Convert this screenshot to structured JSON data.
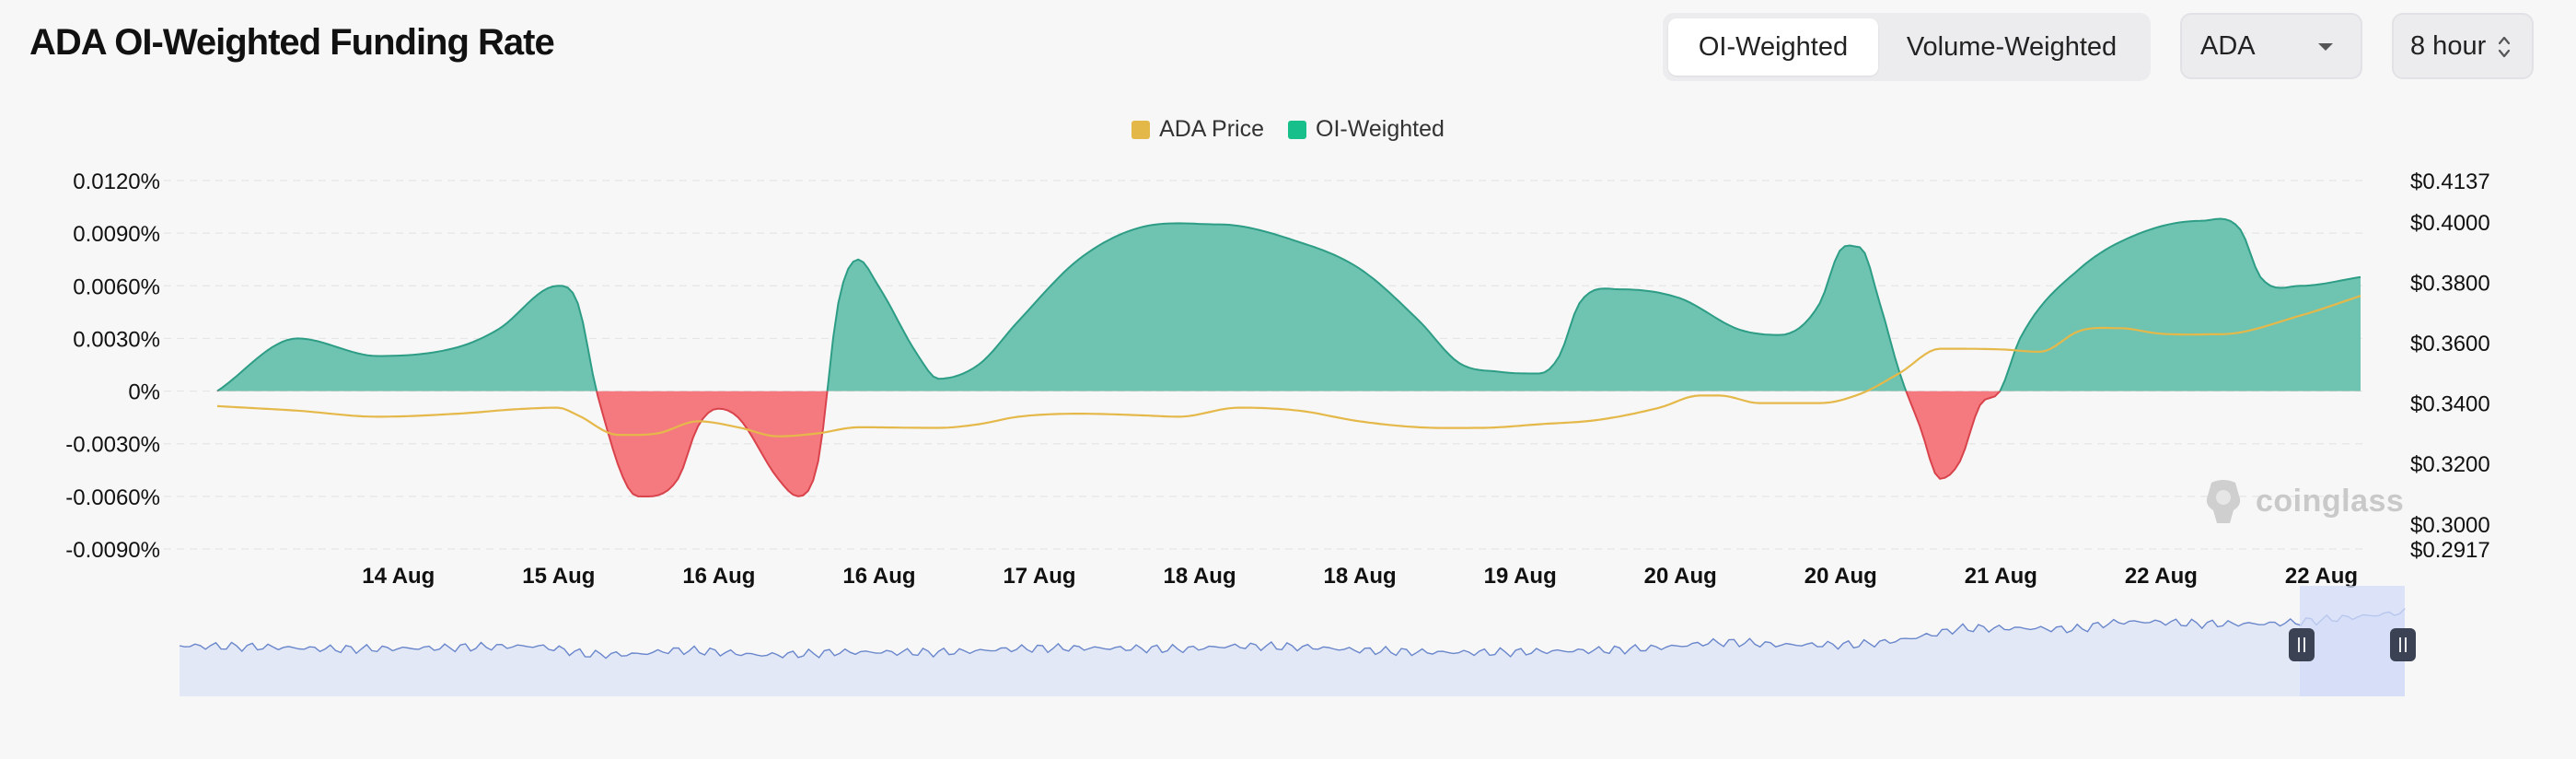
{
  "header": {
    "title": "ADA OI-Weighted Funding Rate",
    "tabs": [
      {
        "label": "OI-Weighted",
        "active": true
      },
      {
        "label": "Volume-Weighted",
        "active": false
      }
    ],
    "asset_select": {
      "value": "ADA"
    },
    "interval_select": {
      "value": "8 hour"
    }
  },
  "watermark": "coinglass",
  "colors": {
    "positive": "#6fc3b1",
    "positive_stroke": "#2e9d86",
    "negative": "#f57a80",
    "negative_stroke": "#d9434b",
    "price": "#e5b84a",
    "price_legend": "#e3b748",
    "oi_legend": "#17c08b",
    "grid": "#e6e6e6",
    "navigator_fill": "#e3e8f6",
    "navigator_line": "#6a87cc",
    "navigator_window": "#d3dcf8",
    "handle": "#3a4254"
  },
  "chart_data": {
    "type": "area",
    "title": "ADA OI-Weighted Funding Rate",
    "legend": [
      {
        "name": "ADA Price",
        "color": "#e3b748"
      },
      {
        "name": "OI-Weighted",
        "color": "#17c08b"
      }
    ],
    "legend_position": "top-center",
    "x_tick_labels": [
      "14 Aug",
      "15 Aug",
      "16 Aug",
      "16 Aug",
      "17 Aug",
      "18 Aug",
      "18 Aug",
      "19 Aug",
      "20 Aug",
      "20 Aug",
      "21 Aug",
      "22 Aug",
      "22 Aug"
    ],
    "x_tick_index": [
      5,
      13,
      21,
      29,
      37,
      45,
      53,
      61,
      69,
      77,
      85,
      93,
      101
    ],
    "y_left": {
      "ylim": [
        -0.009,
        0.012
      ],
      "ticks": [
        0.012,
        0.009,
        0.006,
        0.003,
        0,
        -0.003,
        -0.006,
        -0.009
      ],
      "tick_labels": [
        "0.0120%",
        "0.0090%",
        "0.0060%",
        "0.0030%",
        "0%",
        "-0.0030%",
        "-0.0060%",
        "-0.0090%"
      ]
    },
    "y_right": {
      "ylim": [
        0.2917,
        0.4137
      ],
      "ticks": [
        0.4137,
        0.4,
        0.38,
        0.36,
        0.34,
        0.32,
        0.3,
        0.2917
      ],
      "tick_labels": [
        "$0.4137",
        "$0.4000",
        "$0.3800",
        "$0.3600",
        "$0.3400",
        "$0.3200",
        "$0.3000",
        "$0.2917"
      ]
    },
    "series": [
      {
        "name": "OI-Weighted",
        "axis": "left",
        "knots": [
          [
            0,
            0
          ],
          [
            4,
            0.003
          ],
          [
            8,
            0.002
          ],
          [
            12,
            0.0025
          ],
          [
            14,
            0.0035
          ],
          [
            17,
            0.006
          ],
          [
            18,
            0.005
          ],
          [
            19,
            -0.0003
          ],
          [
            21,
            -0.006
          ],
          [
            23,
            -0.005
          ],
          [
            24,
            -0.002
          ],
          [
            25,
            -0.001
          ],
          [
            26,
            -0.0015
          ],
          [
            28,
            -0.005
          ],
          [
            29,
            -0.006
          ],
          [
            30,
            -0.004
          ],
          [
            31,
            0.005
          ],
          [
            32,
            0.0075
          ],
          [
            33,
            0.006
          ],
          [
            35,
            0.002
          ],
          [
            36,
            0.0007
          ],
          [
            38,
            0.0015
          ],
          [
            40,
            0.004
          ],
          [
            43,
            0.0075
          ],
          [
            46,
            0.0093
          ],
          [
            50,
            0.0095
          ],
          [
            54,
            0.0085
          ],
          [
            57,
            0.007
          ],
          [
            60,
            0.004
          ],
          [
            62,
            0.0016
          ],
          [
            66,
            0.001
          ],
          [
            64,
            0.0011
          ],
          [
            67,
            0.002
          ],
          [
            68,
            0.005
          ],
          [
            70,
            0.0058
          ],
          [
            73,
            0.0053
          ],
          [
            76,
            0.0035
          ],
          [
            78,
            0.0032
          ],
          [
            80,
            0.005
          ],
          [
            81,
            0.008
          ],
          [
            82,
            0.0082
          ],
          [
            83,
            0.005
          ],
          [
            84,
            0.001
          ],
          [
            85,
            -0.002
          ],
          [
            86,
            -0.005
          ],
          [
            87,
            -0.004
          ],
          [
            88,
            -0.0008
          ],
          [
            89,
            0
          ],
          [
            90,
            0.003
          ],
          [
            93,
            0.007
          ],
          [
            96,
            0.009
          ],
          [
            99,
            0.0097
          ],
          [
            101,
            0.0092
          ],
          [
            102,
            0.0065
          ],
          [
            104,
            0.006
          ],
          [
            107,
            0.0065
          ]
        ]
      },
      {
        "name": "ADA Price",
        "axis": "right",
        "knots": [
          [
            0,
            0.339
          ],
          [
            4,
            0.3375
          ],
          [
            8,
            0.3355
          ],
          [
            12,
            0.3365
          ],
          [
            15,
            0.338
          ],
          [
            17,
            0.3385
          ],
          [
            18,
            0.336
          ],
          [
            20,
            0.3295
          ],
          [
            22,
            0.33
          ],
          [
            24,
            0.334
          ],
          [
            26,
            0.332
          ],
          [
            28,
            0.329
          ],
          [
            30,
            0.33
          ],
          [
            32,
            0.332
          ],
          [
            36,
            0.3318
          ],
          [
            38,
            0.333
          ],
          [
            40,
            0.3355
          ],
          [
            43,
            0.3365
          ],
          [
            46,
            0.336
          ],
          [
            48,
            0.3355
          ],
          [
            51,
            0.3385
          ],
          [
            54,
            0.3375
          ],
          [
            57,
            0.334
          ],
          [
            60,
            0.332
          ],
          [
            63,
            0.3318
          ],
          [
            66,
            0.333
          ],
          [
            69,
            0.3345
          ],
          [
            72,
            0.3385
          ],
          [
            74,
            0.3425
          ],
          [
            75,
            0.3425
          ],
          [
            77,
            0.34
          ],
          [
            80,
            0.34
          ],
          [
            82,
            0.343
          ],
          [
            84,
            0.35
          ],
          [
            86,
            0.358
          ],
          [
            89,
            0.3578
          ],
          [
            91,
            0.357
          ],
          [
            93,
            0.364
          ],
          [
            95,
            0.3648
          ],
          [
            97,
            0.363
          ],
          [
            100,
            0.3628
          ],
          [
            104,
            0.369
          ],
          [
            107,
            0.3755
          ]
        ]
      }
    ],
    "x_count": 108
  }
}
